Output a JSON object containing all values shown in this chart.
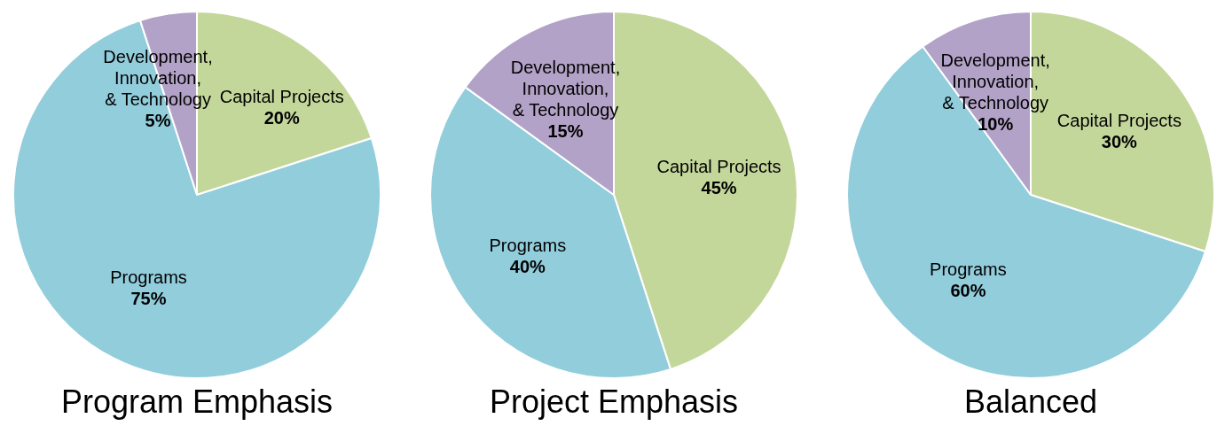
{
  "chart_data": [
    {
      "type": "pie",
      "title": "Program Emphasis",
      "categories": [
        "Capital Projects",
        "Programs",
        "Development, Innovation, & Technology"
      ],
      "values": [
        20,
        75,
        5
      ],
      "colors": [
        "#c4d79b",
        "#92cddc",
        "#b3a2c7"
      ],
      "value_labels": [
        "20%",
        "75%",
        "5%"
      ]
    },
    {
      "type": "pie",
      "title": "Project Emphasis",
      "categories": [
        "Capital Projects",
        "Programs",
        "Development, Innovation, & Technology"
      ],
      "values": [
        45,
        40,
        15
      ],
      "colors": [
        "#c4d79b",
        "#92cddc",
        "#b3a2c7"
      ],
      "value_labels": [
        "45%",
        "40%",
        "15%"
      ]
    },
    {
      "type": "pie",
      "title": "Balanced",
      "categories": [
        "Capital Projects",
        "Programs",
        "Development, Innovation, & Technology"
      ],
      "values": [
        30,
        60,
        10
      ],
      "colors": [
        "#c4d79b",
        "#92cddc",
        "#b3a2c7"
      ],
      "value_labels": [
        "30%",
        "60%",
        "10%"
      ]
    }
  ]
}
